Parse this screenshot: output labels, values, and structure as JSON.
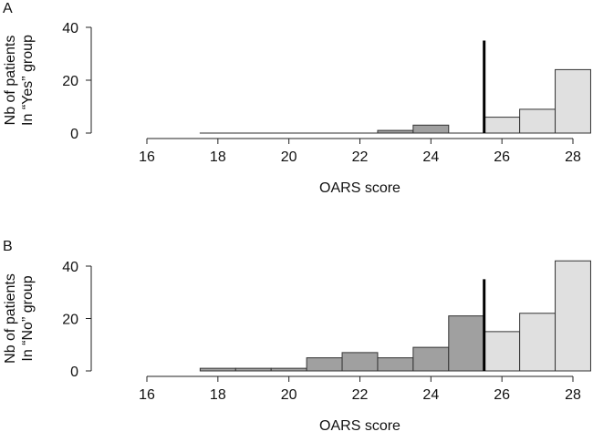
{
  "chart_data": [
    {
      "type": "bar",
      "panel_label": "A",
      "ylabel_lines": [
        "Nb of patients",
        "In “Yes” group"
      ],
      "xlabel": "OARS score",
      "x_ticks": [
        16,
        18,
        20,
        22,
        24,
        26,
        28
      ],
      "y_ticks": [
        0,
        20,
        40
      ],
      "xlim": [
        16,
        28.5
      ],
      "ylim": [
        0,
        40
      ],
      "bin_width": 1,
      "bin_centers": [
        18,
        19,
        20,
        21,
        22,
        23,
        24,
        25,
        26,
        27,
        28
      ],
      "values": [
        0,
        0,
        0,
        0,
        0,
        1,
        3,
        0,
        6,
        9,
        24
      ],
      "cutoff": {
        "x": 25.5,
        "height": 35
      },
      "colors": {
        "below_cutoff": "#a0a0a0",
        "above_cutoff": "#e0e0e0",
        "cutoff_line": "#000000"
      }
    },
    {
      "type": "bar",
      "panel_label": "B",
      "ylabel_lines": [
        "Nb of patients",
        "In “No” group"
      ],
      "xlabel": "OARS score",
      "x_ticks": [
        16,
        18,
        20,
        22,
        24,
        26,
        28
      ],
      "y_ticks": [
        0,
        20,
        40
      ],
      "xlim": [
        16,
        28.5
      ],
      "ylim": [
        0,
        40
      ],
      "bin_width": 1,
      "bin_centers": [
        18,
        19,
        20,
        21,
        22,
        23,
        24,
        25,
        26,
        27,
        28
      ],
      "values": [
        1,
        1,
        1,
        5,
        7,
        5,
        9,
        21,
        15,
        22,
        42
      ],
      "cutoff": {
        "x": 25.5,
        "height": 35
      },
      "colors": {
        "below_cutoff": "#a0a0a0",
        "above_cutoff": "#e0e0e0",
        "cutoff_line": "#000000"
      }
    }
  ]
}
